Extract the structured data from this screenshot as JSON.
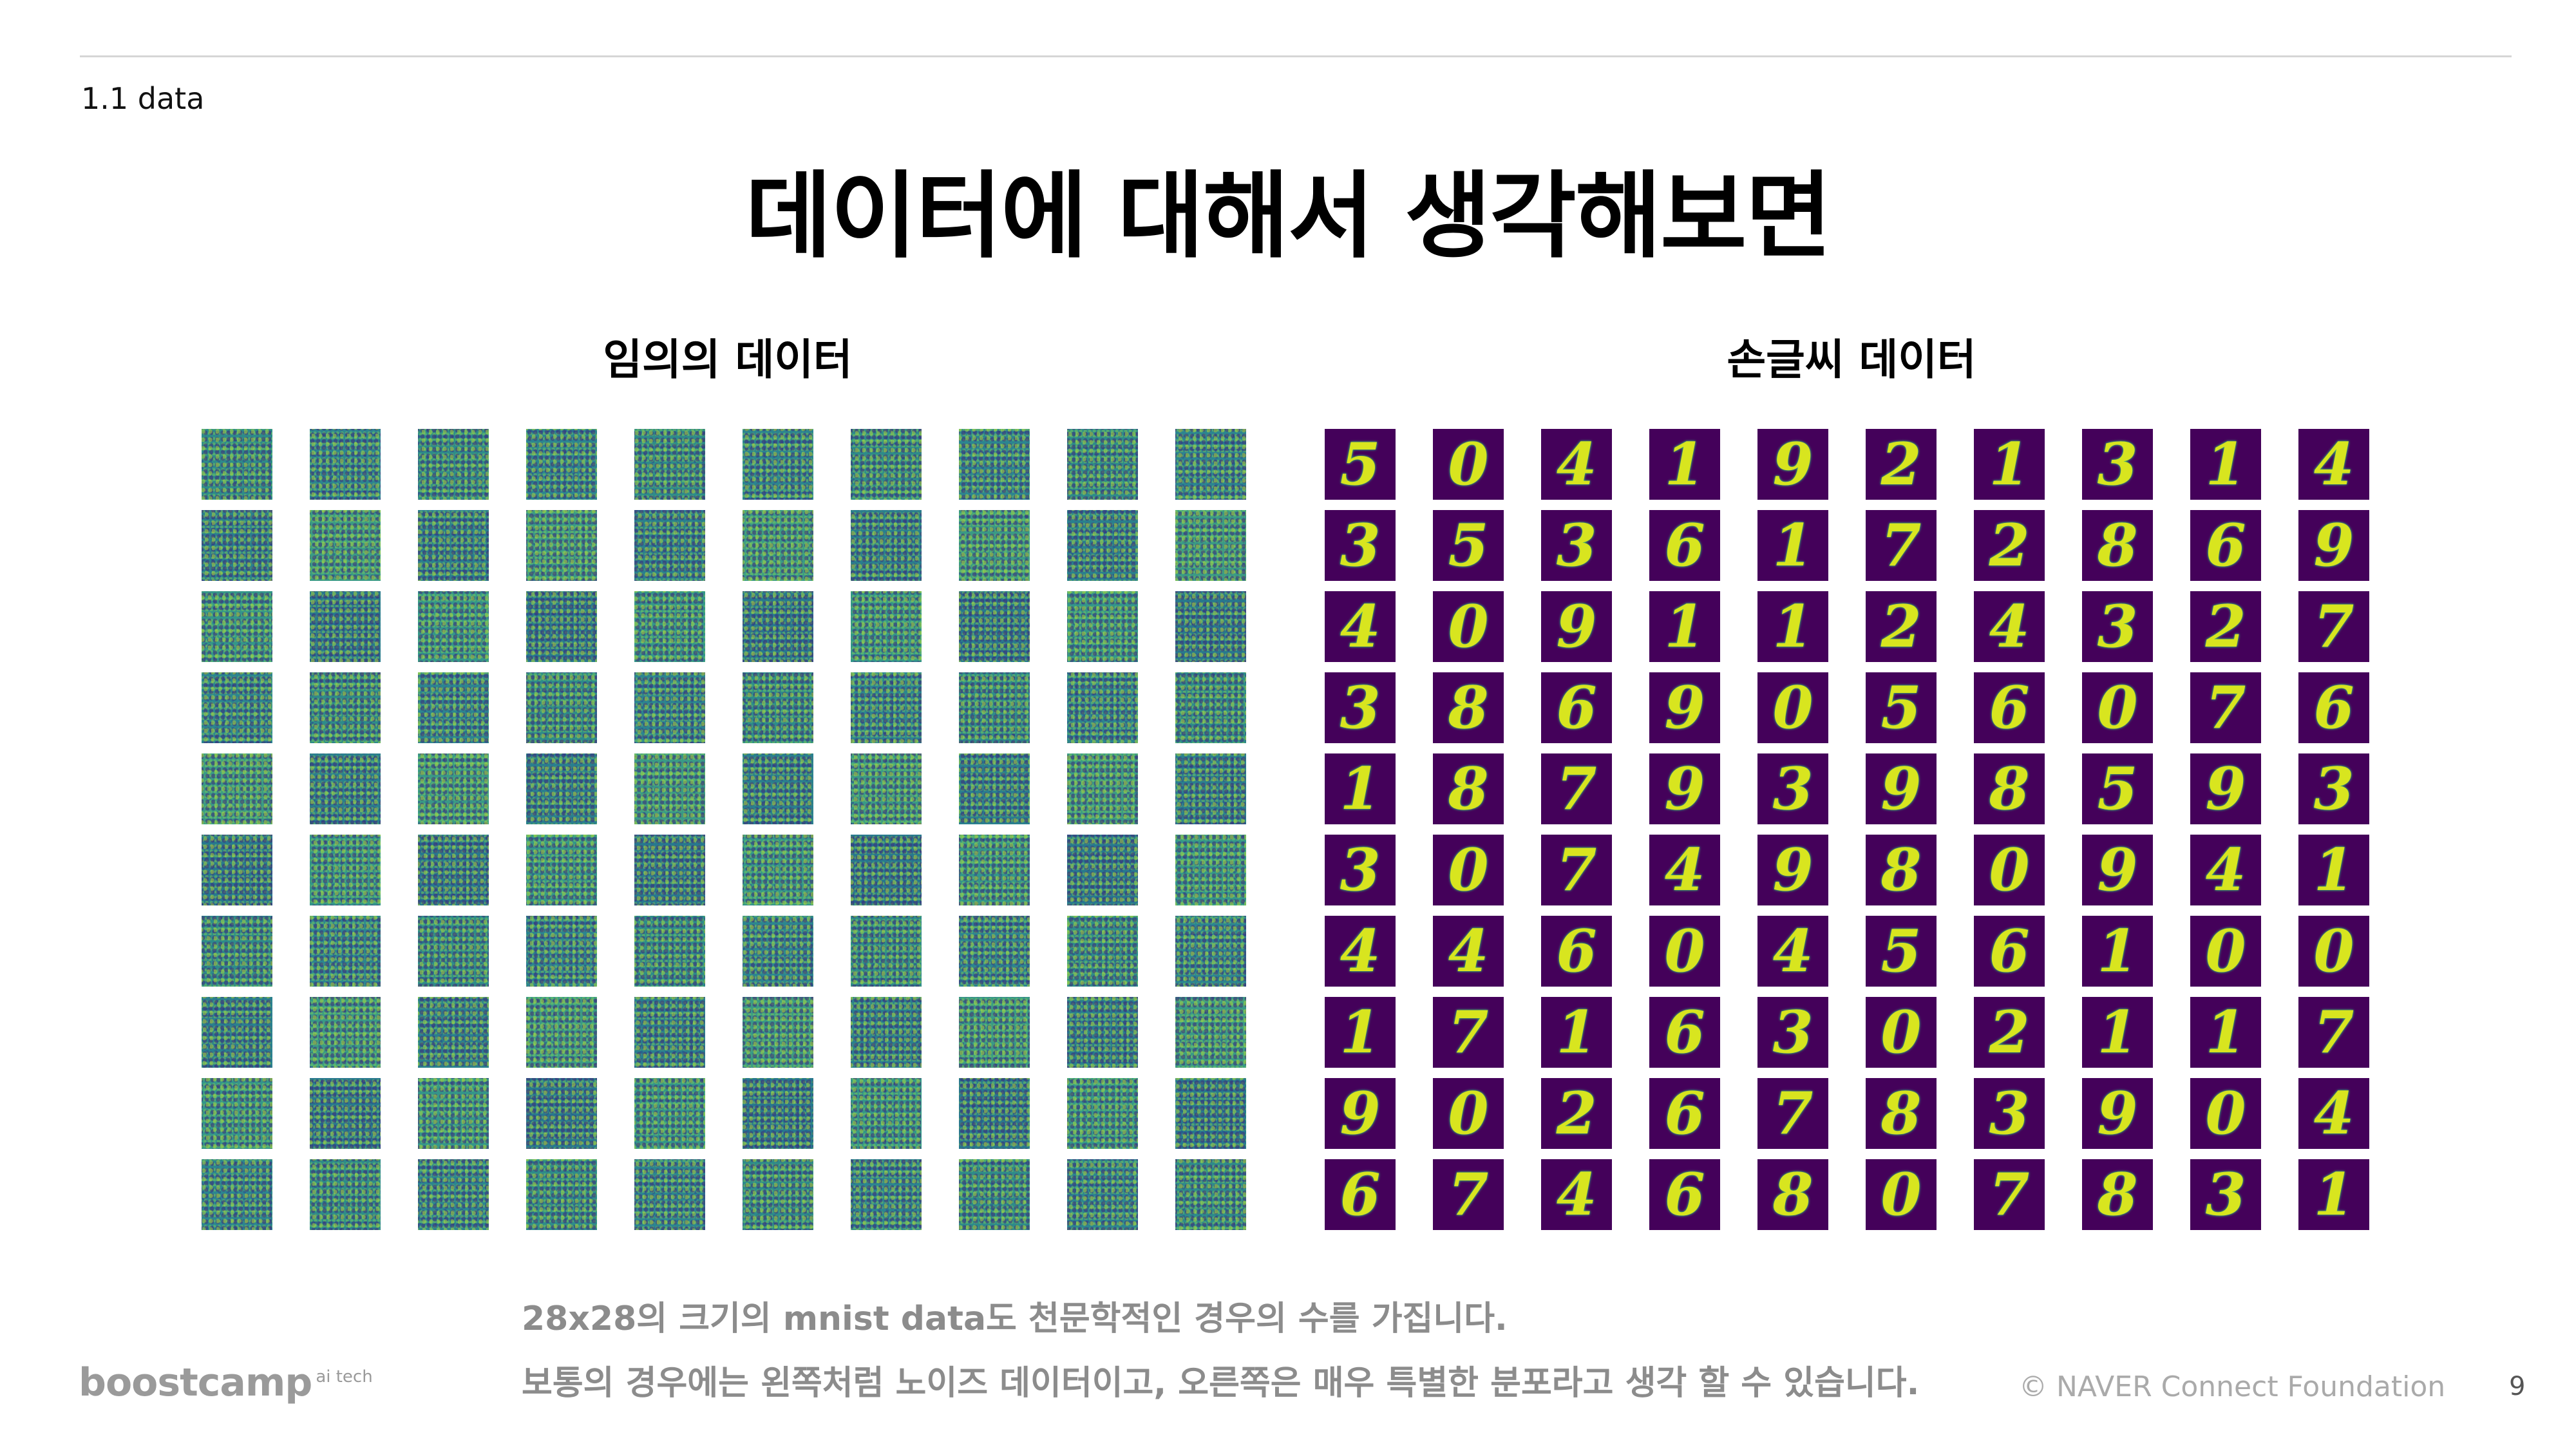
{
  "header": {
    "section": "1.1 data",
    "title": "데이터에 대해서 생각해보면"
  },
  "captions": {
    "left": "임의의   데이터",
    "right": "손글씨 데이터"
  },
  "mnist_digits": [
    [
      "5",
      "0",
      "4",
      "1",
      "9",
      "2",
      "1",
      "3",
      "1",
      "4"
    ],
    [
      "3",
      "5",
      "3",
      "6",
      "1",
      "7",
      "2",
      "8",
      "6",
      "9"
    ],
    [
      "4",
      "0",
      "9",
      "1",
      "1",
      "2",
      "4",
      "3",
      "2",
      "7"
    ],
    [
      "3",
      "8",
      "6",
      "9",
      "0",
      "5",
      "6",
      "0",
      "7",
      "6"
    ],
    [
      "1",
      "8",
      "7",
      "9",
      "3",
      "9",
      "8",
      "5",
      "9",
      "3"
    ],
    [
      "3",
      "0",
      "7",
      "4",
      "9",
      "8",
      "0",
      "9",
      "4",
      "1"
    ],
    [
      "4",
      "4",
      "6",
      "0",
      "4",
      "5",
      "6",
      "1",
      "0",
      "0"
    ],
    [
      "1",
      "7",
      "1",
      "6",
      "3",
      "0",
      "2",
      "1",
      "1",
      "7"
    ],
    [
      "9",
      "0",
      "2",
      "6",
      "7",
      "8",
      "3",
      "9",
      "0",
      "4"
    ],
    [
      "6",
      "7",
      "4",
      "6",
      "8",
      "0",
      "7",
      "8",
      "3",
      "1"
    ]
  ],
  "notes": {
    "line1": "28x28의 크기의 mnist data도 천문학적인 경우의 수를 가집니다.",
    "line2": "보통의 경우에는 왼쪽처럼 노이즈 데이터이고, 오른쪽은 매우 특별한 분포라고 생각 할 수 있습니다."
  },
  "footer": {
    "logo": "boostcamp",
    "logo_sup": "ai tech",
    "copyright": "© NAVER Connect Foundation",
    "page": "9"
  },
  "colors": {
    "noise_base": "#2f8f8a",
    "mnist_bg": "#44015a",
    "mnist_stroke": "#d8e51f",
    "note_text": "#8c8c8c"
  }
}
